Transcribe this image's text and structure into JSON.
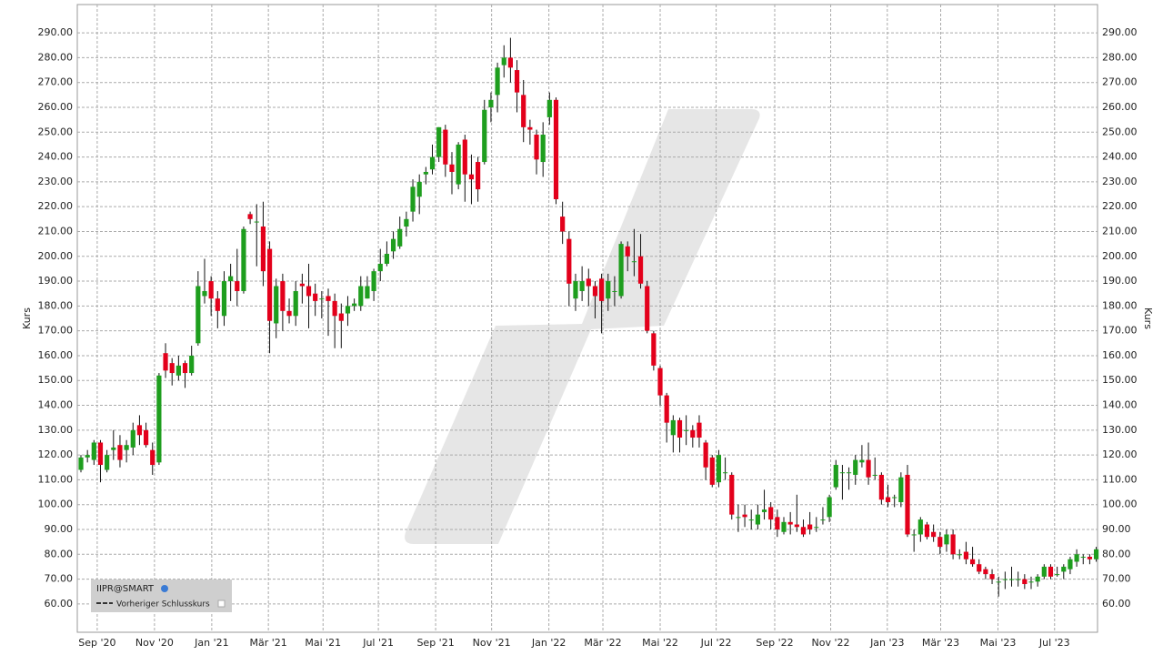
{
  "chart_data": {
    "type": "candlestick",
    "y_label": "Kurs",
    "y2_label": "Kurs",
    "series_name": "IIPR@SMART",
    "reference_line": "Vorheriger Schlusskurs",
    "up_color": "#1e9e1e",
    "down_color": "#e3001b",
    "grid": true,
    "ylim": [
      48.6,
      301.4
    ],
    "yticks": [
      {
        "value": 60,
        "label": "60.00"
      },
      {
        "value": 70,
        "label": "70.00"
      },
      {
        "value": 80,
        "label": "80.00"
      },
      {
        "value": 90,
        "label": "90.00"
      },
      {
        "value": 100,
        "label": "100.00"
      },
      {
        "value": 110,
        "label": "110.00"
      },
      {
        "value": 120,
        "label": "120.00"
      },
      {
        "value": 130,
        "label": "130.00"
      },
      {
        "value": 140,
        "label": "140.00"
      },
      {
        "value": 150,
        "label": "150.00"
      },
      {
        "value": 160,
        "label": "160.00"
      },
      {
        "value": 170,
        "label": "170.00"
      },
      {
        "value": 180,
        "label": "180.00"
      },
      {
        "value": 190,
        "label": "190.00"
      },
      {
        "value": 200,
        "label": "200.00"
      },
      {
        "value": 210,
        "label": "210.00"
      },
      {
        "value": 220,
        "label": "220.00"
      },
      {
        "value": 230,
        "label": "230.00"
      },
      {
        "value": 240,
        "label": "240.00"
      },
      {
        "value": 250,
        "label": "250.00"
      },
      {
        "value": 260,
        "label": "260.00"
      },
      {
        "value": 270,
        "label": "270.00"
      },
      {
        "value": 280,
        "label": "280.00"
      },
      {
        "value": 290,
        "label": "290.00"
      }
    ],
    "xlim": [
      -0.56,
      156.2
    ],
    "xticks": [
      {
        "value": 2.5,
        "label": "Sep '20"
      },
      {
        "value": 11.3,
        "label": "Nov '20"
      },
      {
        "value": 20.1,
        "label": "Jan '21"
      },
      {
        "value": 28.8,
        "label": "Mär '21"
      },
      {
        "value": 37.2,
        "label": "Mai '21"
      },
      {
        "value": 45.7,
        "label": "Jul '21"
      },
      {
        "value": 54.5,
        "label": "Sep '21"
      },
      {
        "value": 63.1,
        "label": "Nov '21"
      },
      {
        "value": 71.9,
        "label": "Jan '22"
      },
      {
        "value": 80.2,
        "label": "Mär '22"
      },
      {
        "value": 89.0,
        "label": "Mai '22"
      },
      {
        "value": 97.6,
        "label": "Jul '22"
      },
      {
        "value": 106.6,
        "label": "Sep '22"
      },
      {
        "value": 115.2,
        "label": "Nov '22"
      },
      {
        "value": 123.9,
        "label": "Jan '23"
      },
      {
        "value": 132.1,
        "label": "Mär '23"
      },
      {
        "value": 140.9,
        "label": "Mai '23"
      },
      {
        "value": 149.6,
        "label": "Jul '23"
      }
    ],
    "open": [
      114,
      119,
      118,
      125,
      114,
      122,
      124,
      122,
      123,
      132,
      130,
      122,
      117,
      161,
      157,
      152,
      157,
      153,
      165,
      184,
      190,
      183,
      176,
      190,
      190,
      186,
      217,
      214,
      212,
      203,
      173,
      190,
      178,
      176,
      189,
      188,
      185,
      183,
      184,
      182,
      177,
      177,
      180,
      180,
      183,
      186,
      194,
      197,
      202,
      204,
      212,
      218,
      224,
      233,
      235,
      240,
      251,
      237,
      229,
      247,
      233,
      238,
      238,
      260,
      265,
      277,
      280,
      275,
      265,
      252,
      249,
      238,
      256,
      263,
      216,
      207,
      183,
      186,
      191,
      188,
      191,
      183,
      186,
      184,
      204,
      198,
      200,
      188,
      169,
      155,
      144,
      128,
      134,
      130,
      130,
      133,
      125,
      119,
      109,
      113,
      112,
      95,
      96,
      94,
      92,
      97,
      99,
      95,
      89,
      93,
      92,
      91,
      92,
      91,
      94,
      95,
      107,
      113,
      113,
      112,
      117,
      118,
      112,
      112,
      103,
      103,
      101,
      112,
      88,
      88,
      92,
      89,
      87,
      84,
      88,
      80,
      81,
      78,
      76,
      74,
      72,
      69,
      70,
      70,
      70,
      70,
      69,
      69,
      71,
      75,
      72,
      73,
      74,
      77,
      79,
      79,
      78
    ],
    "high": [
      120,
      122,
      126,
      126,
      122,
      130,
      128,
      126,
      133,
      136,
      133,
      125,
      153,
      165,
      159,
      160,
      158,
      164,
      194,
      199,
      192,
      186,
      194,
      197,
      203,
      212,
      218,
      221,
      222,
      206,
      191,
      193,
      183,
      190,
      193,
      197,
      189,
      186,
      187,
      185,
      181,
      184,
      183,
      192,
      192,
      195,
      203,
      206,
      210,
      216,
      218,
      231,
      233,
      236,
      245,
      252,
      253,
      242,
      246,
      249,
      241,
      240,
      263,
      266,
      278,
      285,
      288,
      279,
      271,
      255,
      251,
      254,
      266,
      264,
      222,
      210,
      193,
      196,
      195,
      190,
      193,
      193,
      192,
      206,
      206,
      211,
      209,
      190,
      170,
      156,
      145,
      136,
      135,
      136,
      132,
      136,
      126,
      120,
      122,
      119,
      113,
      100,
      100,
      98,
      100,
      106,
      101,
      98,
      95,
      97,
      104,
      94,
      97,
      95,
      99,
      104,
      118,
      116,
      115,
      120,
      124,
      125,
      119,
      113,
      108,
      104,
      113,
      116,
      90,
      95,
      93,
      92,
      89,
      90,
      90,
      82,
      85,
      83,
      78,
      75,
      74,
      71,
      73,
      75,
      73,
      72,
      71,
      72,
      76,
      76,
      75,
      76,
      79,
      82,
      80,
      80,
      83
    ],
    "low": [
      113,
      117,
      116,
      109,
      113,
      118,
      115,
      117,
      120,
      124,
      123,
      112,
      116,
      151,
      148,
      150,
      147,
      152,
      164,
      181,
      176,
      171,
      172,
      182,
      180,
      185,
      213,
      196,
      188,
      161,
      167,
      170,
      173,
      172,
      181,
      171,
      176,
      175,
      168,
      163,
      163,
      172,
      178,
      178,
      183,
      182,
      190,
      196,
      199,
      203,
      208,
      214,
      217,
      229,
      233,
      238,
      232,
      225,
      227,
      222,
      221,
      222,
      237,
      254,
      258,
      272,
      270,
      258,
      246,
      245,
      233,
      232,
      253,
      221,
      205,
      180,
      178,
      182,
      180,
      175,
      169,
      178,
      180,
      183,
      194,
      192,
      187,
      169,
      154,
      140,
      125,
      121,
      121,
      124,
      123,
      123,
      110,
      107,
      107,
      110,
      94,
      89,
      91,
      90,
      90,
      94,
      90,
      87,
      88,
      88,
      89,
      87,
      88,
      89,
      92,
      93,
      106,
      102,
      106,
      108,
      115,
      108,
      110,
      100,
      99,
      99,
      99,
      87,
      81,
      85,
      86,
      85,
      80,
      81,
      78,
      78,
      76,
      75,
      72,
      70,
      68,
      63,
      66,
      67,
      67,
      66,
      66,
      67,
      70,
      70,
      71,
      70,
      72,
      75,
      76,
      76,
      77
    ],
    "close": [
      119,
      120,
      125,
      116,
      120,
      123,
      118,
      124,
      130,
      128,
      124,
      116,
      152,
      154,
      153,
      156,
      153,
      160,
      188,
      186,
      183,
      178,
      190,
      192,
      186,
      211,
      215,
      214,
      194,
      174,
      188,
      178,
      176,
      186,
      188,
      184,
      182,
      183,
      182,
      176,
      174,
      180,
      181,
      188,
      188,
      194,
      197,
      201,
      207,
      211,
      215,
      228,
      230,
      234,
      240,
      252,
      237,
      234,
      245,
      233,
      231,
      227,
      259,
      263,
      276,
      280,
      276,
      266,
      252,
      251,
      239,
      249,
      263,
      223,
      210,
      189,
      190,
      190,
      188,
      184,
      182,
      190,
      186,
      205,
      200,
      198,
      189,
      170,
      156,
      144,
      133,
      134,
      127,
      130,
      127,
      127,
      115,
      108,
      120,
      113,
      96,
      95,
      95,
      94,
      96,
      98,
      94,
      90,
      93,
      92,
      91,
      88,
      90,
      91,
      94,
      103,
      116,
      113,
      113,
      118,
      118,
      111,
      112,
      102,
      101,
      103,
      111,
      88,
      88,
      94,
      87,
      87,
      83,
      88,
      80,
      80,
      78,
      76,
      73,
      72,
      70,
      69,
      70,
      70,
      70,
      68,
      69,
      71,
      75,
      71,
      72,
      75,
      78,
      80,
      79,
      78,
      82
    ]
  }
}
